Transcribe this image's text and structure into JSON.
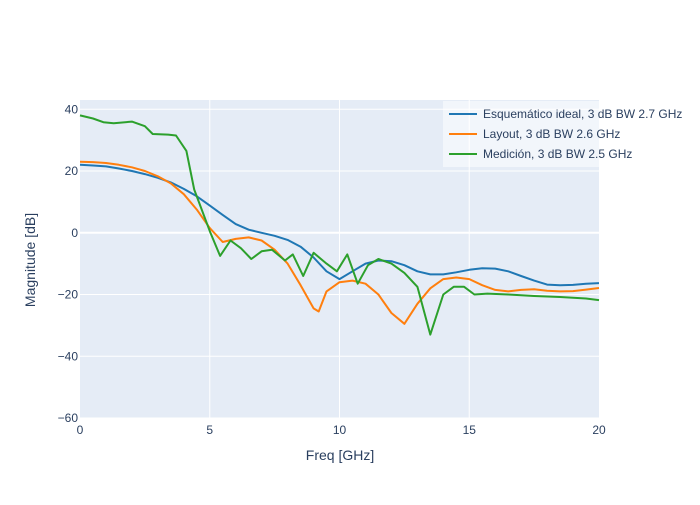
{
  "chart_data": {
    "type": "line",
    "title": "",
    "xlabel": "Freq [GHz]",
    "ylabel": "Magnitude [dB]",
    "xlim": [
      0,
      20
    ],
    "ylim": [
      -60,
      43
    ],
    "xticks": [
      0,
      5,
      10,
      15,
      20
    ],
    "yticks": [
      -60,
      -40,
      -20,
      0,
      20,
      40
    ],
    "grid": true,
    "legend_position": "top-right",
    "colors": {
      "plot_bg": "#e5ecf6",
      "grid": "#ffffff",
      "text": "#2a3f5f"
    },
    "series": [
      {
        "name": "Esquemático ideal, 3 dB BW 2.7 GHz",
        "color": "#1f77b4",
        "x": [
          0,
          0.5,
          1,
          1.5,
          2,
          2.5,
          3,
          3.5,
          4,
          4.5,
          5,
          5.5,
          6,
          6.5,
          7,
          7.5,
          8,
          8.5,
          9,
          9.5,
          10,
          10.5,
          11,
          11.5,
          12,
          12.5,
          13,
          13.5,
          14,
          14.5,
          15,
          15.5,
          16,
          16.5,
          17,
          17.5,
          18,
          18.5,
          19,
          19.5,
          20
        ],
        "y": [
          22,
          21.8,
          21.5,
          20.8,
          20,
          19,
          17.8,
          16.3,
          14.2,
          11.8,
          8.8,
          5.8,
          2.8,
          1,
          0,
          -1,
          -2.3,
          -4.5,
          -8,
          -12.5,
          -15,
          -12.5,
          -10,
          -9,
          -9.2,
          -10.5,
          -12.5,
          -13.5,
          -13.5,
          -12.8,
          -12,
          -11.5,
          -11.6,
          -12.5,
          -14,
          -15.5,
          -16.8,
          -17,
          -16.9,
          -16.5,
          -16.3
        ]
      },
      {
        "name": "Layout, 3 dB BW 2.6 GHz",
        "color": "#ff7f0e",
        "x": [
          0,
          0.5,
          1,
          1.5,
          2,
          2.5,
          3,
          3.5,
          4,
          4.5,
          5,
          5.5,
          6,
          6.5,
          7,
          7.5,
          8,
          8.5,
          9,
          9.2,
          9.5,
          10,
          10.5,
          11,
          11.5,
          12,
          12.5,
          13,
          13.5,
          14,
          14.5,
          15,
          15.5,
          16,
          16.5,
          17,
          17.5,
          18,
          18.5,
          19,
          19.5,
          20
        ],
        "y": [
          23,
          22.9,
          22.6,
          22,
          21.2,
          20,
          18.3,
          16,
          12.5,
          7.5,
          1.5,
          -3,
          -2,
          -1.5,
          -2.5,
          -5.5,
          -10,
          -17,
          -24.5,
          -25.5,
          -19,
          -16,
          -15.5,
          -16.5,
          -20,
          -26,
          -29.5,
          -23,
          -18,
          -15,
          -14.5,
          -15,
          -17,
          -18.5,
          -19,
          -18.5,
          -18.3,
          -18.8,
          -19,
          -18.9,
          -18.4,
          -17.9
        ]
      },
      {
        "name": "Medición, 3 dB BW 2.5 GHz",
        "color": "#2ca02c",
        "x": [
          0,
          0.5,
          0.9,
          1.3,
          2,
          2.5,
          2.8,
          3.4,
          3.7,
          4.1,
          4.4,
          5,
          5.4,
          5.8,
          6.2,
          6.6,
          7,
          7.4,
          7.9,
          8.2,
          8.6,
          9,
          9.5,
          9.9,
          10.3,
          10.7,
          11.1,
          11.5,
          12,
          12.5,
          13,
          13.5,
          14,
          14.4,
          14.8,
          15.2,
          15.7,
          16.5,
          17.5,
          18.5,
          19.5,
          20
        ],
        "y": [
          38,
          37,
          35.8,
          35.5,
          36,
          34.5,
          32,
          31.8,
          31.5,
          26.5,
          14,
          0.5,
          -7.5,
          -2.5,
          -5,
          -8.5,
          -6,
          -5.5,
          -9,
          -7,
          -14,
          -6.5,
          -10,
          -12.5,
          -7,
          -16.5,
          -10.5,
          -8.5,
          -10,
          -13,
          -17.5,
          -33,
          -20,
          -17.5,
          -17.5,
          -20,
          -19.7,
          -20,
          -20.5,
          -20.8,
          -21.3,
          -21.8
        ]
      }
    ]
  }
}
